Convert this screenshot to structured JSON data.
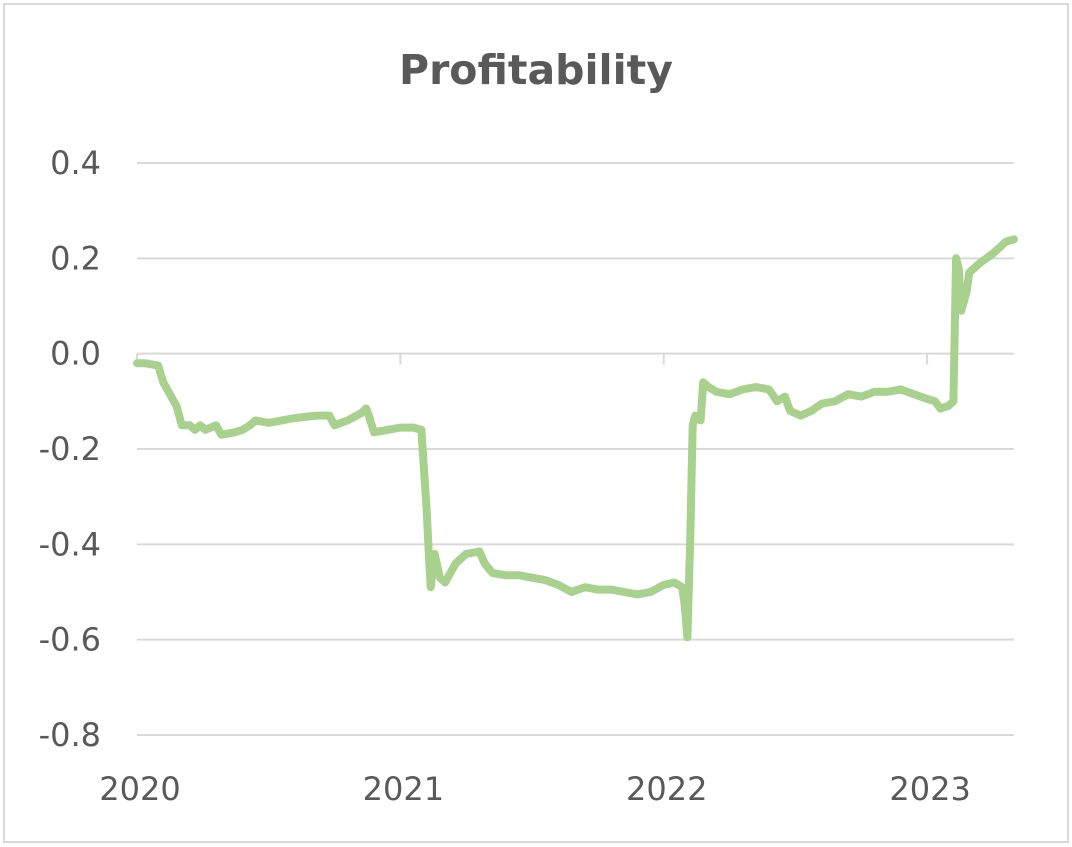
{
  "chart_data": {
    "type": "line",
    "title": "Profitability",
    "xlabel": "",
    "ylabel": "",
    "xlim": [
      2020.0,
      2023.33
    ],
    "ylim": [
      -0.8,
      0.4
    ],
    "y_ticks": [
      0.4,
      0.2,
      0.0,
      -0.2,
      -0.4,
      -0.6,
      -0.8
    ],
    "y_tick_labels": [
      "0.4",
      "0.2",
      "0.0",
      "-0.2",
      "-0.4",
      "-0.6",
      "-0.8"
    ],
    "x_ticks": [
      2020,
      2021,
      2022,
      2023
    ],
    "x_tick_labels": [
      "2020",
      "2021",
      "2022",
      "2023"
    ],
    "grid": true,
    "legend": "none",
    "series": [
      {
        "color": "#a9d18e",
        "points": [
          [
            2020.0,
            -0.02
          ],
          [
            2020.03,
            -0.02
          ],
          [
            2020.08,
            -0.025
          ],
          [
            2020.1,
            -0.06
          ],
          [
            2020.13,
            -0.09
          ],
          [
            2020.15,
            -0.11
          ],
          [
            2020.17,
            -0.15
          ],
          [
            2020.2,
            -0.15
          ],
          [
            2020.22,
            -0.16
          ],
          [
            2020.24,
            -0.15
          ],
          [
            2020.26,
            -0.16
          ],
          [
            2020.3,
            -0.15
          ],
          [
            2020.32,
            -0.17
          ],
          [
            2020.37,
            -0.165
          ],
          [
            2020.4,
            -0.16
          ],
          [
            2020.43,
            -0.15
          ],
          [
            2020.45,
            -0.14
          ],
          [
            2020.5,
            -0.145
          ],
          [
            2020.55,
            -0.14
          ],
          [
            2020.6,
            -0.135
          ],
          [
            2020.68,
            -0.13
          ],
          [
            2020.73,
            -0.13
          ],
          [
            2020.75,
            -0.15
          ],
          [
            2020.8,
            -0.14
          ],
          [
            2020.85,
            -0.125
          ],
          [
            2020.87,
            -0.115
          ],
          [
            2020.88,
            -0.13
          ],
          [
            2020.9,
            -0.165
          ],
          [
            2020.95,
            -0.16
          ],
          [
            2021.0,
            -0.155
          ],
          [
            2021.05,
            -0.155
          ],
          [
            2021.08,
            -0.16
          ],
          [
            2021.1,
            -0.33
          ],
          [
            2021.11,
            -0.44
          ],
          [
            2021.115,
            -0.49
          ],
          [
            2021.13,
            -0.42
          ],
          [
            2021.15,
            -0.47
          ],
          [
            2021.17,
            -0.48
          ],
          [
            2021.19,
            -0.46
          ],
          [
            2021.21,
            -0.44
          ],
          [
            2021.25,
            -0.42
          ],
          [
            2021.3,
            -0.415
          ],
          [
            2021.32,
            -0.44
          ],
          [
            2021.35,
            -0.46
          ],
          [
            2021.4,
            -0.465
          ],
          [
            2021.45,
            -0.465
          ],
          [
            2021.5,
            -0.47
          ],
          [
            2021.55,
            -0.475
          ],
          [
            2021.6,
            -0.485
          ],
          [
            2021.65,
            -0.5
          ],
          [
            2021.7,
            -0.49
          ],
          [
            2021.75,
            -0.495
          ],
          [
            2021.8,
            -0.495
          ],
          [
            2021.85,
            -0.5
          ],
          [
            2021.9,
            -0.505
          ],
          [
            2021.95,
            -0.5
          ],
          [
            2022.0,
            -0.485
          ],
          [
            2022.04,
            -0.48
          ],
          [
            2022.07,
            -0.49
          ],
          [
            2022.08,
            -0.53
          ],
          [
            2022.09,
            -0.595
          ],
          [
            2022.1,
            -0.4
          ],
          [
            2022.11,
            -0.15
          ],
          [
            2022.12,
            -0.13
          ],
          [
            2022.14,
            -0.14
          ],
          [
            2022.15,
            -0.06
          ],
          [
            2022.17,
            -0.07
          ],
          [
            2022.2,
            -0.08
          ],
          [
            2022.25,
            -0.085
          ],
          [
            2022.3,
            -0.075
          ],
          [
            2022.35,
            -0.07
          ],
          [
            2022.4,
            -0.075
          ],
          [
            2022.43,
            -0.1
          ],
          [
            2022.46,
            -0.09
          ],
          [
            2022.48,
            -0.12
          ],
          [
            2022.52,
            -0.13
          ],
          [
            2022.56,
            -0.12
          ],
          [
            2022.6,
            -0.105
          ],
          [
            2022.65,
            -0.1
          ],
          [
            2022.7,
            -0.085
          ],
          [
            2022.75,
            -0.09
          ],
          [
            2022.8,
            -0.08
          ],
          [
            2022.85,
            -0.08
          ],
          [
            2022.9,
            -0.075
          ],
          [
            2022.95,
            -0.085
          ],
          [
            2023.0,
            -0.095
          ],
          [
            2023.03,
            -0.1
          ],
          [
            2023.05,
            -0.115
          ],
          [
            2023.08,
            -0.11
          ],
          [
            2023.1,
            -0.1
          ],
          [
            2023.11,
            0.2
          ],
          [
            2023.12,
            0.18
          ],
          [
            2023.13,
            0.09
          ],
          [
            2023.15,
            0.13
          ],
          [
            2023.16,
            0.17
          ],
          [
            2023.2,
            0.19
          ],
          [
            2023.25,
            0.21
          ],
          [
            2023.3,
            0.235
          ],
          [
            2023.33,
            0.24
          ]
        ]
      }
    ]
  }
}
